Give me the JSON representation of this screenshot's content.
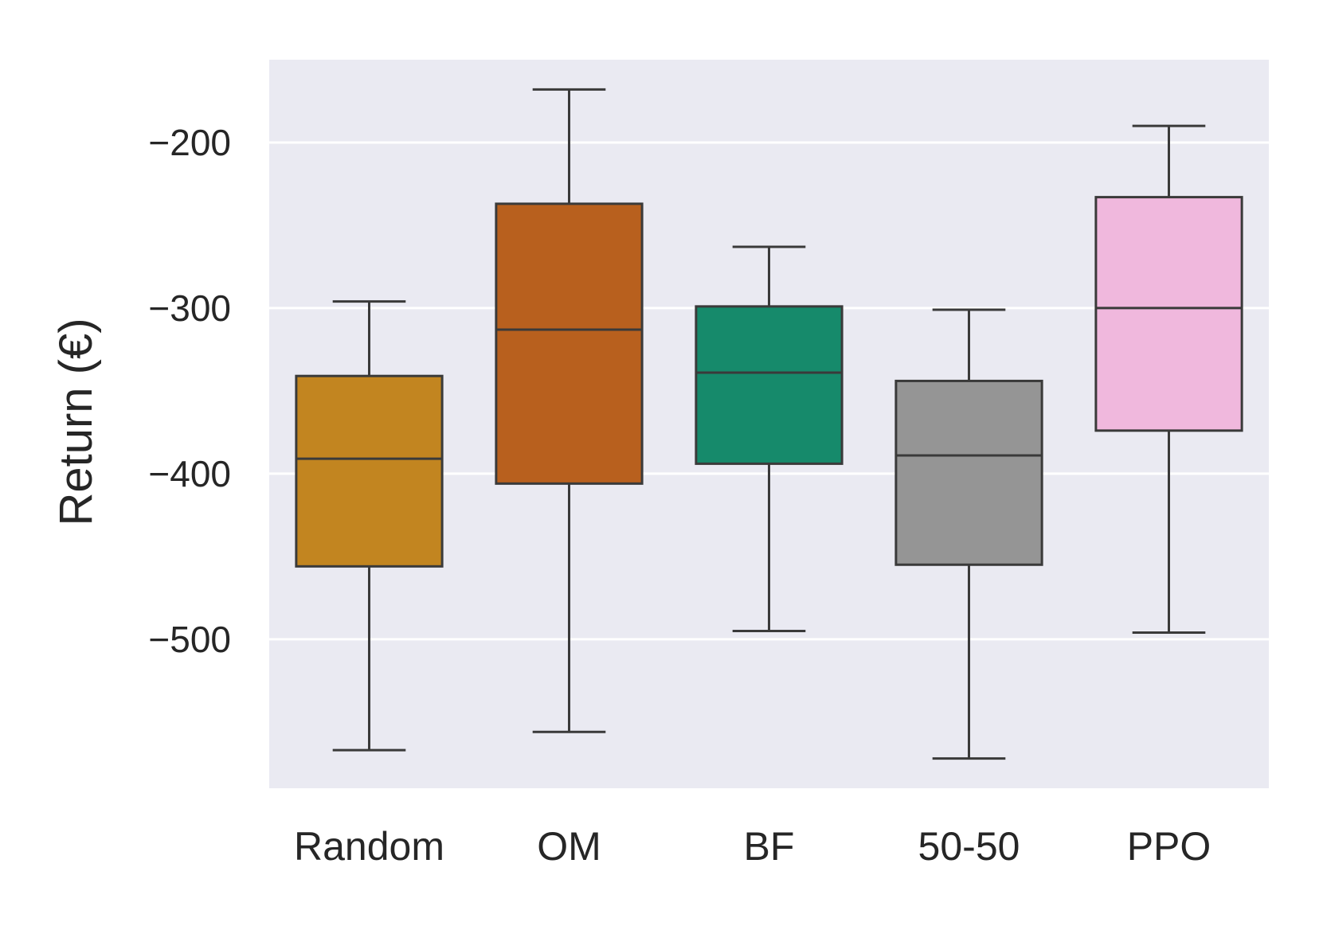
{
  "chart_data": {
    "type": "box",
    "title": "",
    "xlabel": "",
    "ylabel": "Return (€)",
    "ylim": [
      -590,
      -150
    ],
    "yticks": [
      -200,
      -300,
      -400,
      -500
    ],
    "ytick_labels": [
      "−200",
      "−300",
      "−400",
      "−500"
    ],
    "grid": true,
    "background": "#eaeaf2",
    "edge_color": "#3a3a3a",
    "categories": [
      "Random",
      "OM",
      "BF",
      "50-50",
      "PPO"
    ],
    "series": [
      {
        "name": "Random",
        "color": "#c28520",
        "whisker_low": -567,
        "q1": -456,
        "median": -391,
        "q3": -341,
        "whisker_high": -296
      },
      {
        "name": "OM",
        "color": "#b8601e",
        "whisker_low": -556,
        "q1": -406,
        "median": -313,
        "q3": -237,
        "whisker_high": -168
      },
      {
        "name": "BF",
        "color": "#168a6b",
        "whisker_low": -495,
        "q1": -394,
        "median": -339,
        "q3": -299,
        "whisker_high": -263
      },
      {
        "name": "50-50",
        "color": "#959595",
        "whisker_low": -572,
        "q1": -455,
        "median": -389,
        "q3": -344,
        "whisker_high": -301
      },
      {
        "name": "PPO",
        "color": "#f0b8dd",
        "whisker_low": -496,
        "q1": -374,
        "median": -300,
        "q3": -233,
        "whisker_high": -190
      }
    ]
  }
}
